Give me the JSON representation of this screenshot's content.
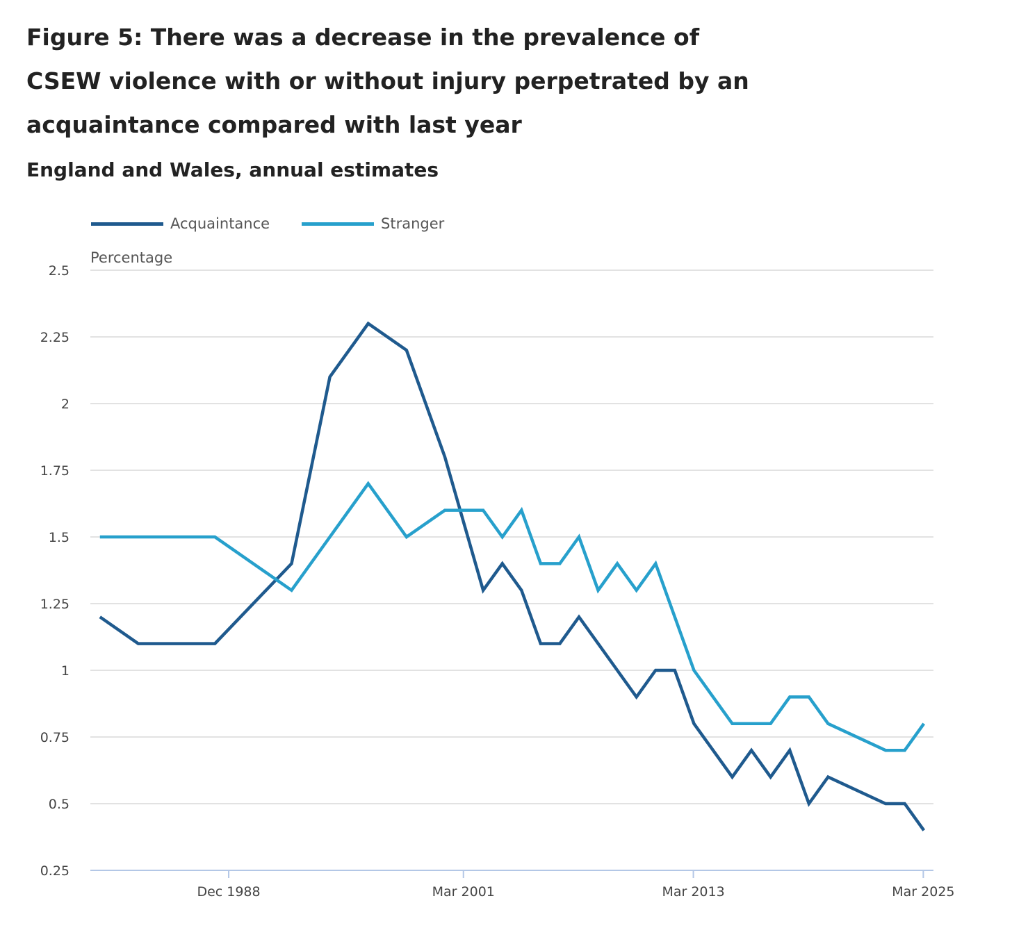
{
  "title": "Figure 5: There was a decrease in the prevalence of CSEW violence with or without injury perpetrated by an acquaintance compared with last year",
  "subtitle": "England and Wales, annual estimates",
  "chart_data": {
    "type": "line",
    "title": "Figure 5: There was a decrease in the prevalence of CSEW violence with or without injury perpetrated by an acquaintance compared with last year",
    "subtitle": "England and Wales, annual estimates",
    "xlabel": "",
    "ylabel": "Percentage",
    "ylim": [
      0.25,
      2.5
    ],
    "xlim": [
      1981.7,
      2025.7
    ],
    "yticks": [
      0.25,
      0.5,
      0.75,
      1,
      1.25,
      1.5,
      1.75,
      2,
      2.25,
      2.5
    ],
    "ytick_labels": [
      "0.25",
      "0.5",
      "0.75",
      "1",
      "1.25",
      "1.5",
      "1.75",
      "2",
      "2.25",
      "2.5"
    ],
    "xticks": [
      1988.92,
      2001.17,
      2013.17,
      2025.17
    ],
    "xtick_labels": [
      "Dec 1988",
      "Mar 2001",
      "Mar 2013",
      "Mar 2025"
    ],
    "grid": true,
    "legend_position": "top-left",
    "x": [
      1982.2,
      1984.2,
      1988.2,
      1992.2,
      1994.2,
      1996.2,
      1998.2,
      2000.2,
      2002.2,
      2003.2,
      2004.2,
      2005.2,
      2006.2,
      2007.2,
      2008.2,
      2009.2,
      2010.2,
      2011.2,
      2012.2,
      2013.2,
      2014.2,
      2015.2,
      2016.2,
      2017.2,
      2018.2,
      2019.2,
      2020.2,
      2023.2,
      2024.2,
      2025.2
    ],
    "series": [
      {
        "name": "Acquaintance",
        "color": "#1f5a8e",
        "values": [
          1.2,
          1.1,
          1.1,
          1.4,
          2.1,
          2.3,
          2.2,
          1.8,
          1.3,
          1.4,
          1.3,
          1.1,
          1.1,
          1.2,
          1.1,
          1.0,
          0.9,
          1.0,
          1.0,
          0.8,
          0.7,
          0.6,
          0.7,
          0.6,
          0.7,
          0.5,
          0.6,
          0.5,
          0.5,
          0.4
        ]
      },
      {
        "name": "Stranger",
        "color": "#27a0cc",
        "values": [
          1.5,
          1.5,
          1.5,
          1.3,
          1.5,
          1.7,
          1.5,
          1.6,
          1.6,
          1.5,
          1.6,
          1.4,
          1.4,
          1.5,
          1.3,
          1.4,
          1.3,
          1.4,
          1.2,
          1.0,
          0.9,
          0.8,
          0.8,
          0.8,
          0.9,
          0.9,
          0.8,
          0.7,
          0.7,
          0.8
        ]
      }
    ]
  }
}
